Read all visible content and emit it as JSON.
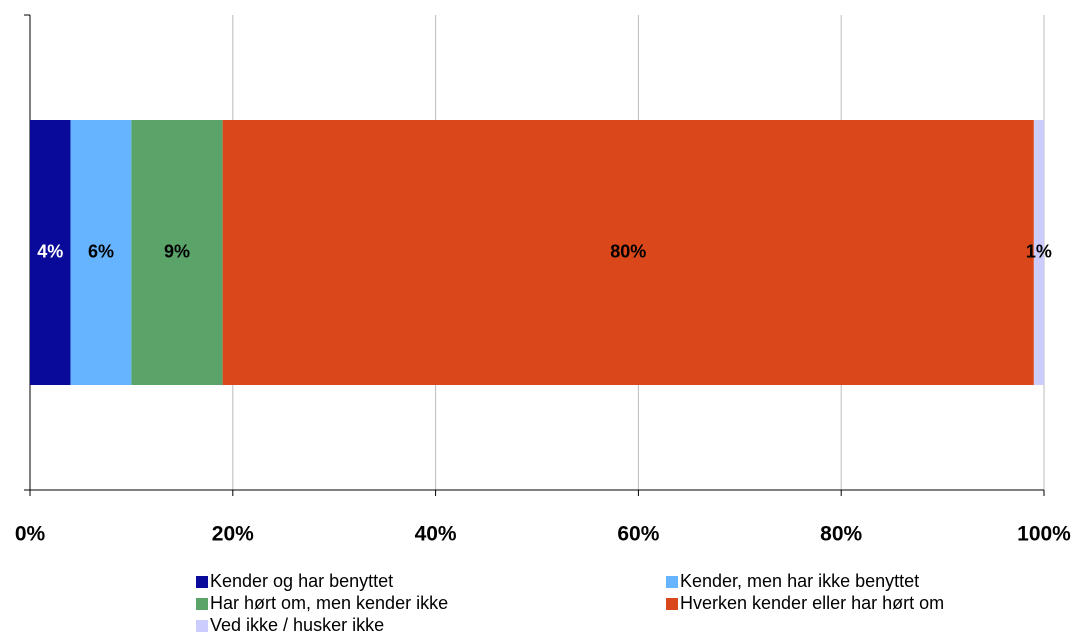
{
  "chart_data": {
    "type": "stacked_bar_horizontal",
    "categories": [
      null
    ],
    "series": [
      {
        "name": "Kender og har benyttet",
        "color": "#0a0a9a",
        "label_color": "#ffffff",
        "values": [
          4
        ],
        "value_labels": [
          "4%"
        ]
      },
      {
        "name": "Kender, men har ikke benyttet",
        "color": "#66b3ff",
        "label_color": "#000000",
        "values": [
          6
        ],
        "value_labels": [
          "6%"
        ]
      },
      {
        "name": "Har hørt om, men kender ikke",
        "color": "#5aa469",
        "label_color": "#000000",
        "values": [
          9
        ],
        "value_labels": [
          "9%"
        ]
      },
      {
        "name": "Hverken kender eller har hørt om",
        "color": "#d9471a",
        "label_color": "#000000",
        "values": [
          80
        ],
        "value_labels": [
          "80%"
        ]
      },
      {
        "name": "Ved ikke / husker ikke",
        "color": "#ccccff",
        "label_color": "#000000",
        "values": [
          1
        ],
        "value_labels": [
          "1%"
        ]
      }
    ],
    "xlim": [
      0,
      100
    ],
    "xticks": [
      {
        "value": 0,
        "label": "0%"
      },
      {
        "value": 20,
        "label": "20%"
      },
      {
        "value": 40,
        "label": "40%"
      },
      {
        "value": 60,
        "label": "60%"
      },
      {
        "value": 80,
        "label": "80%"
      },
      {
        "value": 100,
        "label": "100%"
      }
    ],
    "grid": true,
    "legend": "bottom"
  }
}
